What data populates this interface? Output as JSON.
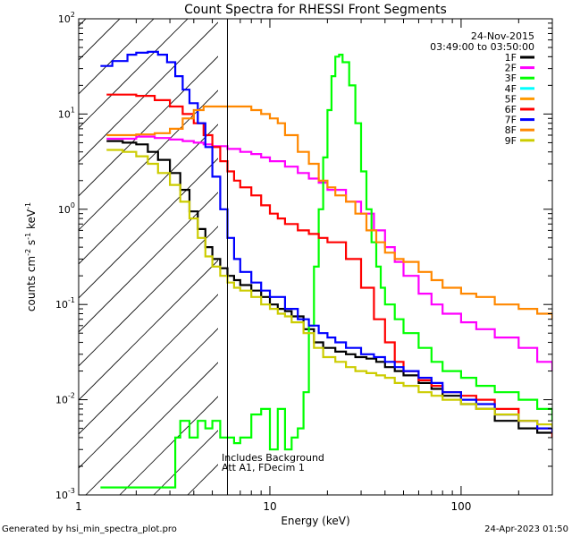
{
  "chart_data": {
    "type": "line",
    "title": "Count Spectra for RHESSI Front Segments",
    "xlabel": "Energy (keV)",
    "ylabel_main": "counts cm",
    "ylabel_sup1": "-2",
    "ylabel_mid": " s",
    "ylabel_sup2": "-1",
    "ylabel_end": " keV",
    "ylabel_sup3": "-1",
    "xscale": "log",
    "yscale": "log",
    "xlim": [
      1,
      300
    ],
    "ylim": [
      0.001,
      100
    ],
    "x_ticks": [
      {
        "value": 1,
        "label": "1"
      },
      {
        "value": 10,
        "label": "10"
      },
      {
        "value": 100,
        "label": "100"
      }
    ],
    "y_ticks": [
      {
        "value": 0.001,
        "base": "10",
        "exp": "-3"
      },
      {
        "value": 0.01,
        "base": "10",
        "exp": "-2"
      },
      {
        "value": 0.1,
        "base": "10",
        "exp": "-1"
      },
      {
        "value": 1,
        "base": "10",
        "exp": "0"
      },
      {
        "value": 10,
        "base": "10",
        "exp": "1"
      },
      {
        "value": 100,
        "base": "10",
        "exp": "2"
      }
    ],
    "vertical_marker_energy": 6,
    "hatched_region": [
      1,
      6
    ],
    "date": "24-Nov-2015",
    "time_range": "03:49:00 to 03:50:00",
    "note_line1": "Includes Background",
    "note_line2": "Att A1, FDecim  1",
    "legend_position": "top-right",
    "series": [
      {
        "name": "1F",
        "color": "#000000",
        "x": [
          1.4,
          1.7,
          2,
          2.3,
          2.6,
          3,
          3.4,
          3.8,
          4.2,
          4.6,
          5,
          5.5,
          6,
          6.5,
          7,
          8,
          9,
          10,
          11,
          12,
          13,
          15,
          17,
          19,
          22,
          25,
          28,
          32,
          36,
          40,
          45,
          50,
          60,
          70,
          80,
          100,
          120,
          150,
          200,
          250,
          300
        ],
        "y": [
          5.2,
          5.0,
          4.8,
          4.0,
          3.3,
          2.4,
          1.6,
          0.95,
          0.62,
          0.4,
          0.3,
          0.24,
          0.2,
          0.18,
          0.16,
          0.14,
          0.12,
          0.1,
          0.09,
          0.085,
          0.075,
          0.055,
          0.04,
          0.035,
          0.032,
          0.03,
          0.028,
          0.027,
          0.025,
          0.022,
          0.02,
          0.018,
          0.015,
          0.013,
          0.011,
          0.009,
          0.008,
          0.006,
          0.005,
          0.0045,
          0.004
        ]
      },
      {
        "name": "2F",
        "color": "#ff00ff",
        "x": [
          1.4,
          2,
          2.5,
          3,
          3.5,
          4,
          4.5,
          5,
          6,
          7,
          8,
          9,
          10,
          12,
          14,
          16,
          18,
          20,
          25,
          30,
          35,
          40,
          45,
          50,
          60,
          70,
          80,
          100,
          120,
          150,
          200,
          250,
          300
        ],
        "y": [
          5.5,
          5.8,
          5.6,
          5.4,
          5.2,
          5.0,
          4.8,
          4.6,
          4.3,
          4.0,
          3.8,
          3.5,
          3.2,
          2.8,
          2.4,
          2.1,
          1.9,
          1.6,
          1.2,
          0.9,
          0.6,
          0.4,
          0.28,
          0.2,
          0.13,
          0.1,
          0.08,
          0.065,
          0.055,
          0.045,
          0.035,
          0.025,
          0.02
        ]
      },
      {
        "name": "3F",
        "color": "#00ff00",
        "x": [
          1.3,
          1.4,
          3.2,
          3.4,
          3.8,
          4.2,
          4.6,
          5,
          5.5,
          6,
          6.5,
          7,
          8,
          9,
          10,
          11,
          12,
          13,
          14,
          15,
          16,
          17,
          18,
          19,
          20,
          21,
          22,
          23,
          24,
          26,
          28,
          30,
          32,
          34,
          36,
          38,
          40,
          45,
          50,
          60,
          70,
          80,
          100,
          120,
          150,
          200,
          250,
          300
        ],
        "y": [
          0.0012,
          0.0012,
          0.004,
          0.006,
          0.004,
          0.006,
          0.005,
          0.006,
          0.004,
          0.004,
          0.0035,
          0.004,
          0.007,
          0.008,
          0.003,
          0.008,
          0.003,
          0.004,
          0.005,
          0.012,
          0.06,
          0.25,
          1.0,
          3.5,
          11,
          25,
          40,
          42,
          35,
          20,
          8,
          2.5,
          1.0,
          0.45,
          0.25,
          0.15,
          0.1,
          0.07,
          0.05,
          0.035,
          0.025,
          0.02,
          0.017,
          0.014,
          0.012,
          0.01,
          0.008,
          0.006
        ]
      },
      {
        "name": "4F",
        "color": "#00ffff",
        "x": [],
        "y": []
      },
      {
        "name": "5F",
        "color": "#ff9900",
        "x": [],
        "y": []
      },
      {
        "name": "6F",
        "color": "#ff0000",
        "x": [
          1.4,
          2,
          2.5,
          3,
          3.5,
          4,
          4.5,
          5,
          5.5,
          6,
          6.5,
          7,
          8,
          9,
          10,
          11,
          12,
          14,
          16,
          18,
          20,
          25,
          30,
          35,
          40,
          45,
          50,
          60,
          70,
          80,
          100,
          120,
          150,
          200,
          250,
          300
        ],
        "y": [
          16,
          15.5,
          14,
          12,
          10,
          8,
          6,
          4.5,
          3.2,
          2.5,
          2.0,
          1.7,
          1.4,
          1.1,
          0.9,
          0.8,
          0.7,
          0.6,
          0.55,
          0.5,
          0.45,
          0.3,
          0.15,
          0.07,
          0.04,
          0.025,
          0.02,
          0.016,
          0.014,
          0.012,
          0.011,
          0.01,
          0.008,
          0.006,
          0.005,
          0.004
        ]
      },
      {
        "name": "7F",
        "color": "#0000ff",
        "x": [
          1.3,
          1.5,
          1.8,
          2,
          2.3,
          2.6,
          2.9,
          3.2,
          3.5,
          3.8,
          4.2,
          4.6,
          5,
          5.5,
          6,
          6.5,
          7,
          8,
          9,
          10,
          12,
          14,
          16,
          18,
          20,
          22,
          25,
          30,
          35,
          40,
          45,
          50,
          60,
          70,
          80,
          100,
          120,
          150,
          200,
          250,
          300
        ],
        "y": [
          32,
          36,
          42,
          44,
          45,
          42,
          35,
          25,
          18,
          13,
          8,
          4.5,
          2.2,
          1.0,
          0.5,
          0.3,
          0.22,
          0.17,
          0.14,
          0.12,
          0.09,
          0.07,
          0.06,
          0.05,
          0.045,
          0.04,
          0.035,
          0.03,
          0.028,
          0.025,
          0.022,
          0.02,
          0.017,
          0.015,
          0.012,
          0.01,
          0.009,
          0.007,
          0.006,
          0.005,
          0.0045
        ]
      },
      {
        "name": "8F",
        "color": "#ff8800",
        "x": [
          1.4,
          2,
          2.5,
          3,
          3.5,
          4,
          4.5,
          5,
          5.5,
          6,
          6.5,
          7,
          8,
          9,
          10,
          11,
          12,
          14,
          16,
          18,
          20,
          22,
          25,
          28,
          32,
          36,
          40,
          45,
          50,
          60,
          70,
          80,
          100,
          120,
          150,
          200,
          250,
          300
        ],
        "y": [
          6,
          6.1,
          6.3,
          7,
          9,
          11,
          12,
          12,
          12,
          12,
          12,
          12,
          11,
          10,
          9,
          8,
          6,
          4,
          3,
          2,
          1.7,
          1.4,
          1.2,
          0.9,
          0.6,
          0.45,
          0.35,
          0.3,
          0.28,
          0.22,
          0.18,
          0.15,
          0.13,
          0.12,
          0.1,
          0.09,
          0.08,
          0.07
        ]
      },
      {
        "name": "9F",
        "color": "#cccc00",
        "x": [
          1.4,
          1.7,
          2,
          2.3,
          2.6,
          3,
          3.4,
          3.8,
          4.2,
          4.6,
          5,
          5.5,
          6,
          6.5,
          7,
          8,
          9,
          10,
          11,
          12,
          13,
          15,
          17,
          19,
          22,
          25,
          28,
          32,
          36,
          40,
          45,
          50,
          60,
          70,
          80,
          100,
          120,
          150,
          200,
          250,
          300
        ],
        "y": [
          4.2,
          4.0,
          3.6,
          3.0,
          2.4,
          1.8,
          1.2,
          0.8,
          0.5,
          0.32,
          0.25,
          0.2,
          0.17,
          0.15,
          0.14,
          0.12,
          0.1,
          0.09,
          0.08,
          0.075,
          0.065,
          0.05,
          0.035,
          0.028,
          0.025,
          0.022,
          0.02,
          0.019,
          0.018,
          0.017,
          0.015,
          0.014,
          0.012,
          0.011,
          0.01,
          0.009,
          0.008,
          0.007,
          0.006,
          0.0055,
          0.005
        ]
      }
    ]
  },
  "footer": {
    "left": "Generated by hsi_min_spectra_plot.pro",
    "right": "24-Apr-2023 01:50"
  }
}
